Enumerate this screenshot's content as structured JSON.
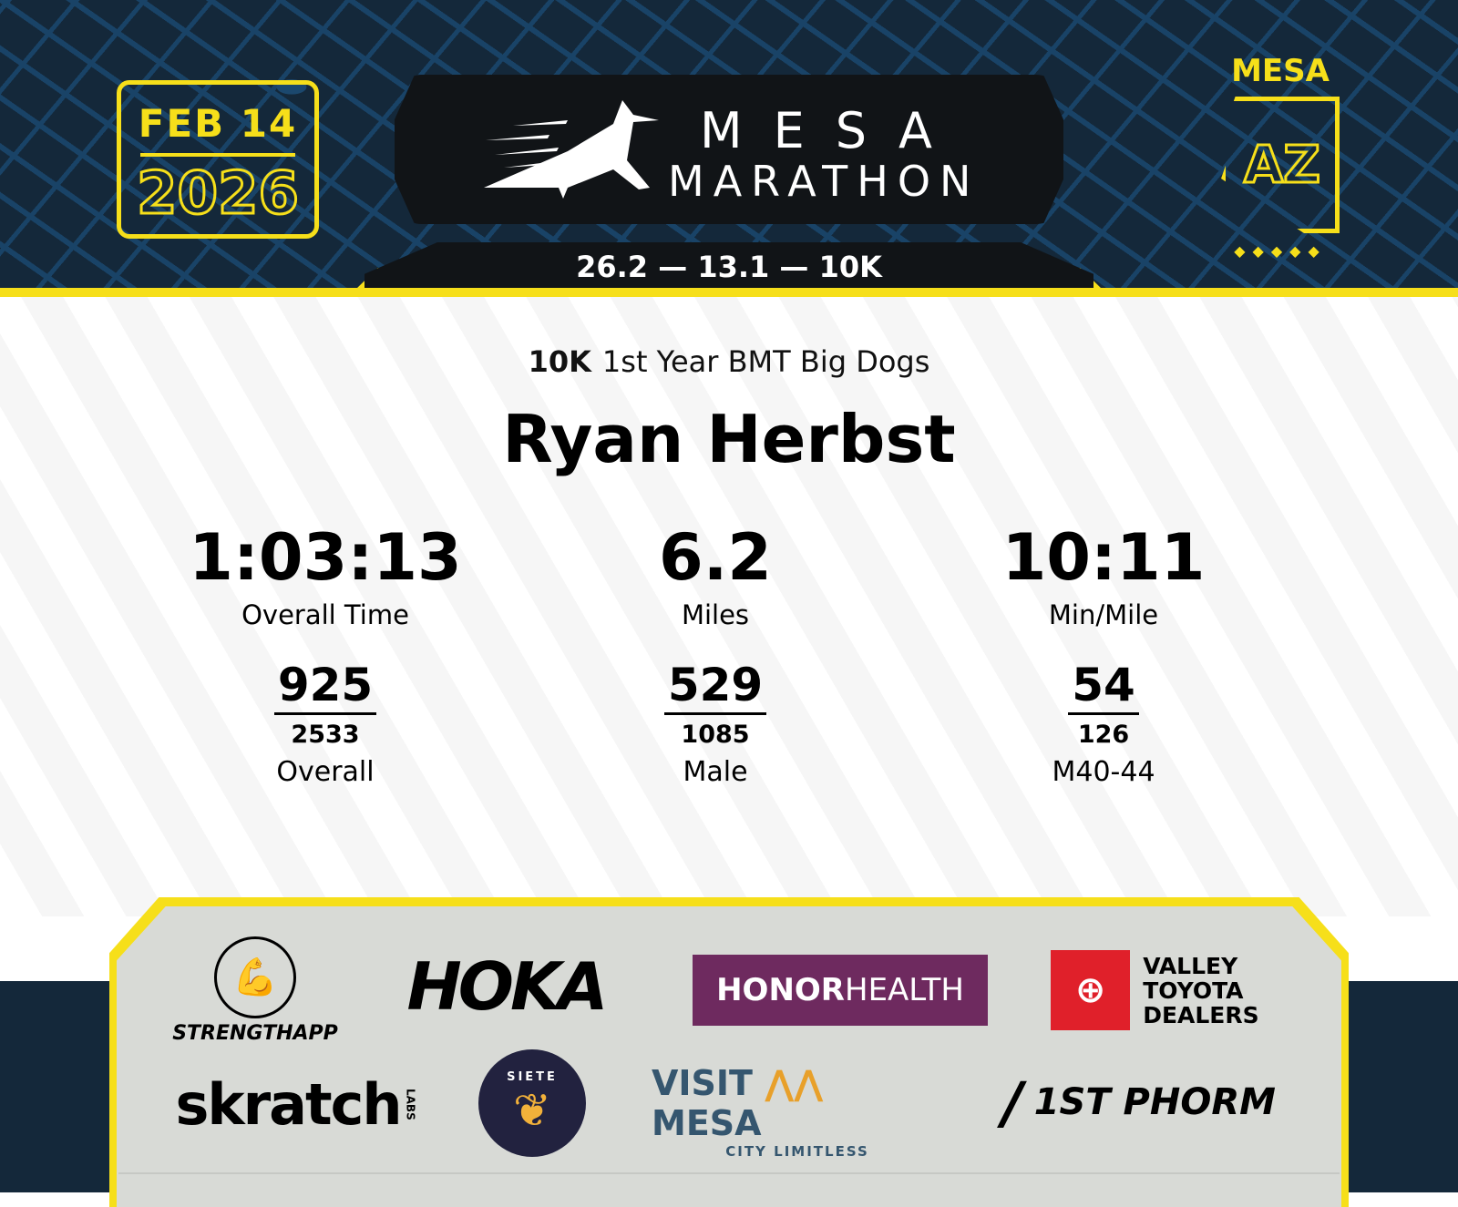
{
  "header": {
    "date": "FEB 14",
    "year": "2026",
    "logo_line1": "MESA",
    "logo_line2": "MARATHON",
    "distances": "26.2 — 13.1 — 10K",
    "state_city": "MESA",
    "state_abbr": "AZ",
    "dots": "◆◆◆◆◆"
  },
  "result": {
    "race": "10K",
    "team": "1st Year BMT Big Dogs",
    "name": "Ryan Herbst",
    "stats": [
      {
        "value": "1:03:13",
        "label": "Overall Time",
        "rank": "925",
        "total": "2533",
        "rank_label": "Overall"
      },
      {
        "value": "6.2",
        "label": "Miles",
        "rank": "529",
        "total": "1085",
        "rank_label": "Male"
      },
      {
        "value": "10:11",
        "label": "Min/Mile",
        "rank": "54",
        "total": "126",
        "rank_label": "M40-44"
      }
    ]
  },
  "sponsors": {
    "strengthapp": "STRENGTHAPP",
    "hoka": "HOKA",
    "honor": "HONOR",
    "health": "HEALTH",
    "toyota": "VALLEY TOYOTA DEALERS",
    "skratch": "skratch",
    "labs": "LABS",
    "siete": "SIETE",
    "visit": "VISIT",
    "mesa": "MESA",
    "limitless": "CITY LIMITLESS",
    "phorm": "1ST PHORM"
  },
  "colors": {
    "accent": "#f6df1a",
    "navy": "#14283a",
    "honor_purple": "#6e2a5f",
    "toyota_red": "#e0202a"
  }
}
